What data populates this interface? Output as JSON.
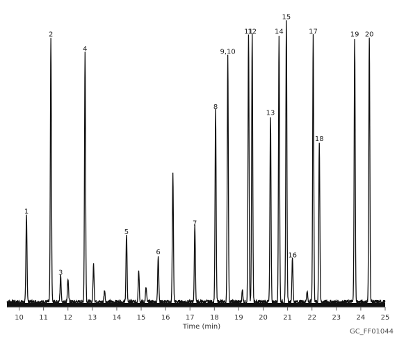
{
  "chart_data": {
    "type": "line",
    "title": "",
    "xlabel": "Time (min)",
    "ylabel": "",
    "xlim": [
      9.5,
      25.0
    ],
    "ylim": [
      0,
      100
    ],
    "x_ticks": [
      "10",
      "11",
      "12",
      "13",
      "14",
      "15",
      "16",
      "17",
      "18",
      "19",
      "20",
      "21",
      "22",
      "23",
      "24",
      "25"
    ],
    "grid": false,
    "legend": "none",
    "figure_code": "GC_FF01044",
    "line_color": "#111111",
    "peaks": [
      {
        "label": "1",
        "x": 10.3,
        "y": 30
      },
      {
        "label": "2",
        "x": 11.3,
        "y": 91
      },
      {
        "label": "3",
        "x": 11.7,
        "y": 9
      },
      {
        "label": "",
        "x": 12.0,
        "y": 8
      },
      {
        "label": "4",
        "x": 12.7,
        "y": 86
      },
      {
        "label": "",
        "x": 13.05,
        "y": 13
      },
      {
        "label": "",
        "x": 13.5,
        "y": 4
      },
      {
        "label": "5",
        "x": 14.4,
        "y": 23
      },
      {
        "label": "",
        "x": 14.9,
        "y": 11
      },
      {
        "label": "",
        "x": 15.2,
        "y": 5
      },
      {
        "label": "6",
        "x": 15.7,
        "y": 16
      },
      {
        "label": "",
        "x": 16.3,
        "y": 44
      },
      {
        "label": "7",
        "x": 17.2,
        "y": 26
      },
      {
        "label": "8",
        "x": 18.05,
        "y": 66
      },
      {
        "label": "9,10",
        "x": 18.55,
        "y": 85
      },
      {
        "label": "",
        "x": 19.15,
        "y": 4
      },
      {
        "label": "11",
        "x": 19.4,
        "y": 92
      },
      {
        "label": "12",
        "x": 19.55,
        "y": 92
      },
      {
        "label": "13",
        "x": 20.3,
        "y": 64
      },
      {
        "label": "14",
        "x": 20.65,
        "y": 92
      },
      {
        "label": "15",
        "x": 20.95,
        "y": 97
      },
      {
        "label": "16",
        "x": 21.2,
        "y": 15
      },
      {
        "label": "",
        "x": 21.8,
        "y": 4
      },
      {
        "label": "17",
        "x": 22.05,
        "y": 92
      },
      {
        "label": "18",
        "x": 22.3,
        "y": 55
      },
      {
        "label": "19",
        "x": 23.75,
        "y": 91
      },
      {
        "label": "20",
        "x": 24.35,
        "y": 91
      }
    ]
  }
}
